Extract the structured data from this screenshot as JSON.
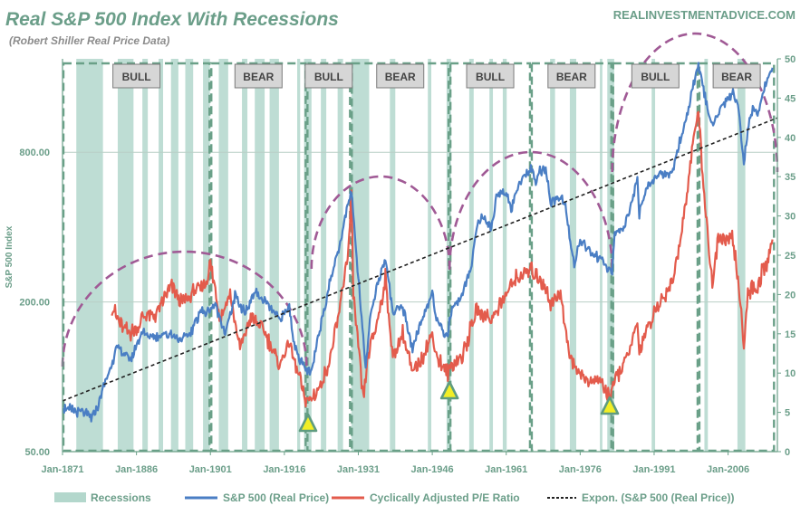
{
  "chart_data": {
    "type": "line",
    "title": "Real S&P 500 Index With Recessions",
    "subtitle": "(Robert Shiller Real Price Data)",
    "source": "REALINVESTMENTADVICE.COM",
    "ylabel_left": "S&P 500 Index",
    "y_left_scale": "log",
    "y_left_ticks": [
      {
        "value": 50,
        "label": "50.00"
      },
      {
        "value": 200,
        "label": "200.00"
      },
      {
        "value": 800,
        "label": "800.00"
      }
    ],
    "y_right_range": [
      0,
      50
    ],
    "y_right_ticks": [
      0,
      5,
      10,
      15,
      20,
      25,
      30,
      35,
      40,
      45,
      50
    ],
    "x_range": [
      1871,
      2016
    ],
    "x_ticks": [
      {
        "value": 1871,
        "label": "Jan-1871"
      },
      {
        "value": 1886,
        "label": "Jan-1886"
      },
      {
        "value": 1901,
        "label": "Jan-1901"
      },
      {
        "value": 1916,
        "label": "Jan-1916"
      },
      {
        "value": 1931,
        "label": "Jan-1931"
      },
      {
        "value": 1946,
        "label": "Jan-1946"
      },
      {
        "value": 1961,
        "label": "Jan-1961"
      },
      {
        "value": 1976,
        "label": "Jan-1976"
      },
      {
        "value": 1991,
        "label": "Jan-1991"
      },
      {
        "value": 2006,
        "label": "Jan-2006"
      }
    ],
    "grid": "horizontal",
    "legend_position": "bottom",
    "legend": [
      "Recessions",
      "S&P 500 (Real Price)",
      "Cyclically Adjusted P/E Ratio",
      "Expon. (S&P 500 (Real Price))"
    ],
    "colors": {
      "recession": "#b3d7cc",
      "sp500": "#4a7ec4",
      "cape": "#e35b4c",
      "trend": "#222222",
      "arc": "#a05a95",
      "box": "#6aa088",
      "marker_fill": "#f2ee26",
      "marker_stroke": "#5f9c80"
    },
    "regimes": [
      {
        "label": "BULL",
        "start": 1871,
        "end": 1901
      },
      {
        "label": "BEAR",
        "start": 1901,
        "end": 1920.5
      },
      {
        "label": "BULL",
        "start": 1920.5,
        "end": 1929.5
      },
      {
        "label": "BEAR",
        "start": 1929.5,
        "end": 1949.5
      },
      {
        "label": "BULL",
        "start": 1949.5,
        "end": 1966
      },
      {
        "label": "BEAR",
        "start": 1966,
        "end": 1982.5
      },
      {
        "label": "BULL",
        "start": 1982.5,
        "end": 2000
      },
      {
        "label": "BEAR",
        "start": 2000,
        "end": 2015.5
      }
    ],
    "recessions": [
      [
        1873.8,
        1879.2
      ],
      [
        1882.2,
        1885.4
      ],
      [
        1887.2,
        1888.3
      ],
      [
        1890.5,
        1891.4
      ],
      [
        1893.0,
        1894.5
      ],
      [
        1895.9,
        1897.5
      ],
      [
        1899.5,
        1900.9
      ],
      [
        1902.7,
        1904.6
      ],
      [
        1907.4,
        1908.5
      ],
      [
        1910.0,
        1912.0
      ],
      [
        1913.0,
        1914.9
      ],
      [
        1918.6,
        1919.2
      ],
      [
        1920.0,
        1921.5
      ],
      [
        1923.4,
        1924.5
      ],
      [
        1926.8,
        1927.9
      ],
      [
        1929.6,
        1933.2
      ],
      [
        1937.4,
        1938.5
      ],
      [
        1945.1,
        1945.8
      ],
      [
        1948.9,
        1949.8
      ],
      [
        1953.5,
        1954.4
      ],
      [
        1957.6,
        1958.3
      ],
      [
        1960.3,
        1961.1
      ],
      [
        1969.9,
        1970.9
      ],
      [
        1973.9,
        1975.2
      ],
      [
        1980.0,
        1980.5
      ],
      [
        1981.5,
        1982.9
      ],
      [
        1990.5,
        1991.2
      ],
      [
        2001.2,
        2001.9
      ],
      [
        2007.9,
        2009.5
      ]
    ],
    "series": [
      {
        "name": "S&P 500 (Real Price)",
        "axis": "left",
        "x": [
          1871,
          1875,
          1877,
          1878,
          1880,
          1882,
          1885,
          1887,
          1890,
          1893,
          1895,
          1897,
          1899,
          1900,
          1902,
          1904,
          1906,
          1908,
          1910,
          1912,
          1915,
          1917,
          1918,
          1920,
          1921.5,
          1923,
          1925,
          1927,
          1929.6,
          1930.5,
          1932.5,
          1933.5,
          1935,
          1936.5,
          1938,
          1940,
          1942,
          1944,
          1946,
          1947,
          1949,
          1950,
          1952,
          1954,
          1955,
          1956,
          1958,
          1959,
          1961,
          1962,
          1963,
          1965,
          1966,
          1967,
          1968,
          1969,
          1970,
          1972,
          1973,
          1974.8,
          1976,
          1978,
          1980,
          1982.5,
          1983,
          1985,
          1987.6,
          1988,
          1990,
          1992,
          1994,
          1995,
          1996,
          1998,
          1999,
          2000,
          2001,
          2002.8,
          2004,
          2007,
          2008,
          2009.2,
          2010,
          2011,
          2012,
          2013,
          2014,
          2015
        ],
        "values": [
          75,
          72,
          68,
          75,
          100,
          130,
          118,
          150,
          145,
          150,
          140,
          150,
          185,
          180,
          195,
          150,
          210,
          180,
          220,
          200,
          170,
          190,
          135,
          108,
          103,
          150,
          230,
          330,
          560,
          330,
          110,
          180,
          240,
          300,
          180,
          190,
          130,
          170,
          220,
          165,
          145,
          190,
          210,
          290,
          400,
          440,
          400,
          530,
          560,
          470,
          560,
          650,
          680,
          620,
          680,
          680,
          500,
          530,
          480,
          280,
          350,
          320,
          300,
          260,
          380,
          400,
          620,
          450,
          600,
          650,
          650,
          700,
          850,
          1200,
          1500,
          1800,
          1450,
          1000,
          1150,
          1400,
          1250,
          720,
          1000,
          1200,
          1150,
          1350,
          1600,
          1750
        ]
      },
      {
        "name": "Cyclically Adjusted P/E Ratio",
        "axis": "right",
        "x": [
          1881,
          1883,
          1885,
          1888,
          1890,
          1893,
          1895,
          1897,
          1900,
          1901,
          1903,
          1905,
          1907,
          1909,
          1911,
          1913,
          1915,
          1917,
          1920,
          1921,
          1923,
          1925,
          1927,
          1929,
          1929.6,
          1930,
          1932,
          1933,
          1935,
          1936.5,
          1938,
          1940,
          1942,
          1944,
          1946,
          1947,
          1949,
          1950,
          1952,
          1955,
          1958,
          1961,
          1963,
          1966,
          1968,
          1970,
          1972,
          1974,
          1976,
          1978,
          1980,
          1982,
          1983,
          1985,
          1987.6,
          1988,
          1990,
          1993,
          1995,
          1997,
          1999,
          2000,
          2001,
          2002.8,
          2004,
          2007,
          2008,
          2009.2,
          2010,
          2011,
          2012,
          2013,
          2014,
          2015
        ],
        "values": [
          18.5,
          16,
          15,
          17.5,
          17.5,
          21,
          19,
          20,
          21.5,
          24,
          17,
          20,
          13,
          17,
          16,
          14,
          11,
          14,
          7,
          6.5,
          8,
          11,
          17,
          26,
          32,
          20,
          6.5,
          12,
          17,
          22,
          12,
          15,
          10,
          12,
          15,
          12,
          10,
          11,
          12,
          18,
          17,
          20,
          22,
          23,
          22,
          19,
          20,
          12,
          10,
          9,
          9,
          7,
          9,
          11,
          16,
          13,
          16,
          20,
          22,
          30,
          40,
          43,
          34,
          21,
          27,
          27,
          22,
          14,
          20,
          21,
          21,
          23,
          24,
          27
        ]
      },
      {
        "name": "Expon. (S&P 500 (Real Price))",
        "axis": "left",
        "style": "dashed",
        "x": [
          1871,
          2016
        ],
        "values": [
          80,
          1100
        ]
      }
    ],
    "annotations": {
      "markers_year": [
        1920.8,
        1949.5,
        1982.0
      ],
      "arcs": [
        [
          1871,
          1920.5
        ],
        [
          1921.5,
          1949.5
        ],
        [
          1949.5,
          1982.5
        ],
        [
          1982.5,
          2016
        ]
      ]
    }
  }
}
